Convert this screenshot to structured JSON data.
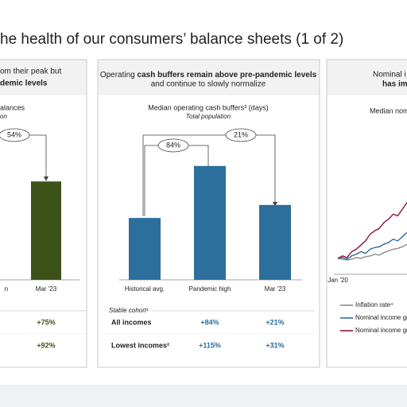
{
  "title": "he health of our consumers’ balance sheets (1 of 2)",
  "panels": [
    {
      "header": {
        "line1": "om their peak but",
        "line2_bold": "demic levels"
      },
      "table": {
        "rows": [
          [
            "+75%"
          ],
          [
            "+92%"
          ]
        ]
      }
    },
    {
      "header": {
        "line1": "Operating ",
        "line1_bold": "cash buffers remain above pre-pandemic levels",
        "line2": "and continue to slowly normalize"
      },
      "table": {
        "caption": "Stable cohort¹",
        "rows": [
          [
            "All incomes",
            "+84%",
            "+21%"
          ],
          [
            "Lowest incomes²",
            "+115%",
            "+31%"
          ]
        ]
      }
    },
    {
      "header": {
        "line1": "Nominal i",
        "line2_bold": "has imp"
      }
    }
  ],
  "chart_data": [
    {
      "type": "bar",
      "title": "alances",
      "subtitle": "on",
      "categories": [
        "n",
        "Mar '23"
      ],
      "values": [
        null,
        159
      ],
      "color": "#3c5219",
      "ylim": [
        0,
        230
      ],
      "annotations": [
        "54%"
      ]
    },
    {
      "type": "bar",
      "title": "Median operating cash buffers³ (days)",
      "subtitle": "Total population",
      "categories": [
        "Historical avg.",
        "Pandemic high",
        "Mar '23"
      ],
      "values": [
        100,
        184,
        121
      ],
      "color": "#2c6e9c",
      "ylim": [
        0,
        230
      ],
      "annotations": [
        "84%",
        "21%"
      ]
    },
    {
      "type": "line",
      "title": "Median nom",
      "categories": [
        "Jan '20",
        null,
        null,
        null,
        null,
        null,
        null,
        null,
        null,
        null,
        null,
        null,
        null,
        null,
        null,
        null
      ],
      "ylim": [
        0,
        100
      ],
      "series": [
        {
          "name": "Inflation rate⁴",
          "color": "#8c8c8c",
          "values": [
            19,
            18,
            17,
            18,
            20,
            19,
            21,
            22,
            24,
            23,
            26,
            28,
            30,
            31,
            33,
            36
          ]
        },
        {
          "name": "Nominal income gr",
          "color": "#2e6da4",
          "values": [
            19,
            20,
            18,
            22,
            24,
            27,
            25,
            30,
            32,
            33,
            36,
            38,
            42,
            40,
            45,
            50
          ]
        },
        {
          "name": "Nominal income gr",
          "color": "#8b1538",
          "values": [
            19,
            22,
            20,
            27,
            30,
            35,
            40,
            48,
            52,
            55,
            62,
            66,
            72,
            70,
            78,
            86
          ]
        }
      ]
    }
  ]
}
